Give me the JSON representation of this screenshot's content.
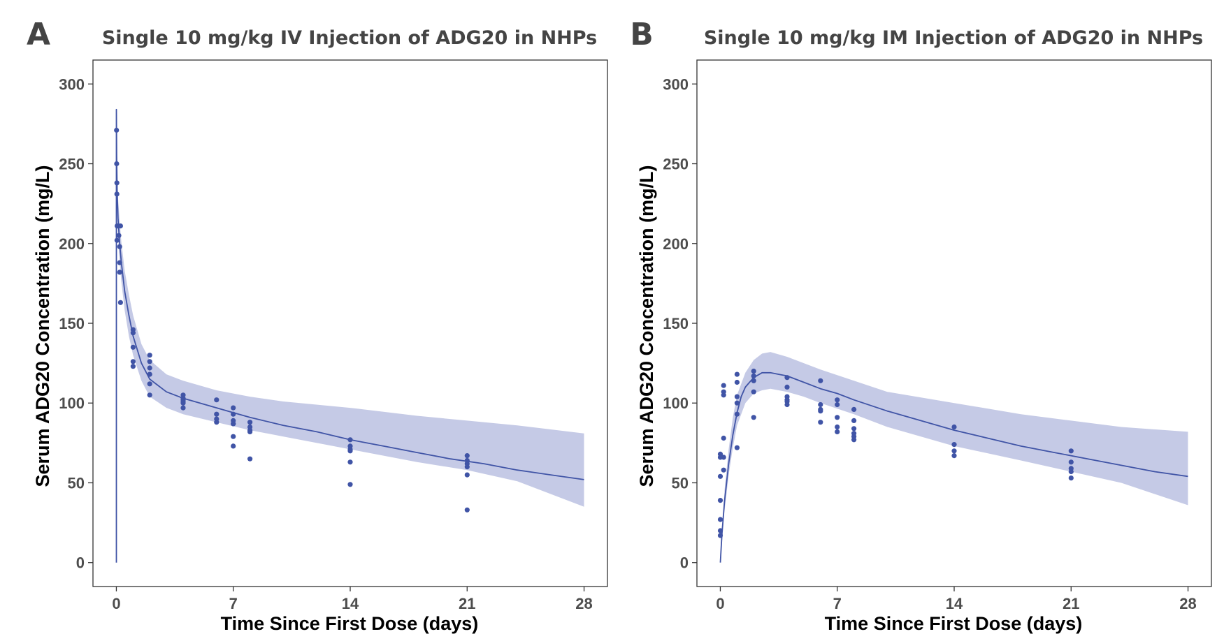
{
  "colors": {
    "series": "#4054a6",
    "band": "#c5cae6",
    "text": "#444444"
  },
  "chart_data": [
    {
      "type": "scatter",
      "panel_letter": "A",
      "title": "Single 10 mg/kg IV Injection of ADG20 in NHPs",
      "xlabel": "Time Since First Dose (days)",
      "ylabel": "Serum ADG20 Concentration (mg/L)",
      "xlim": [
        -1.4,
        29.4
      ],
      "ylim": [
        -15,
        315
      ],
      "xticks": [
        0,
        7,
        14,
        21,
        28
      ],
      "yticks": [
        0,
        50,
        100,
        150,
        200,
        250,
        300
      ],
      "grid": false,
      "series": [
        {
          "kind": "points",
          "x": [
            0.01,
            0.02,
            0.03,
            0.03,
            0.04,
            0.05,
            0.1,
            0.15,
            0.2,
            0.2,
            0.2,
            0.25,
            0.25,
            1,
            1,
            1,
            1,
            1,
            2,
            2,
            2,
            2,
            2,
            2,
            4,
            4,
            4,
            4,
            4,
            4,
            6,
            6,
            6,
            6,
            7,
            7,
            7,
            7,
            7,
            7,
            7,
            8,
            8,
            8,
            8,
            8,
            14,
            14,
            14,
            14,
            14,
            14,
            21,
            21,
            21,
            21,
            21,
            21
          ],
          "y": [
            271,
            250,
            238,
            231,
            202,
            211,
            211,
            205,
            198,
            188,
            182,
            163,
            211,
            146,
            144,
            135,
            126,
            123,
            130,
            126,
            122,
            118,
            112,
            105,
            105,
            103,
            102,
            101,
            100,
            97,
            102,
            93,
            90,
            88,
            97,
            93,
            89,
            87,
            79,
            73,
            87,
            88,
            85,
            83,
            65,
            82,
            77,
            73,
            71,
            70,
            63,
            49,
            67,
            64,
            62,
            60,
            55,
            33
          ]
        },
        {
          "kind": "line",
          "x": [
            0,
            0,
            0.01,
            0.02,
            0.05,
            0.1,
            0.2,
            0.3,
            0.5,
            0.75,
            1,
            1.5,
            2,
            3,
            4,
            5,
            6,
            7,
            8,
            10,
            12,
            14,
            16,
            18,
            20,
            22,
            24,
            26,
            28
          ],
          "y": [
            0,
            284,
            270,
            255,
            232,
            216,
            200,
            188,
            170,
            155,
            142,
            125,
            115,
            107,
            103,
            100,
            97,
            94,
            91,
            86,
            82,
            77,
            73,
            69,
            65,
            62,
            58,
            55,
            52
          ]
        },
        {
          "kind": "band",
          "x": [
            0.01,
            0.05,
            0.1,
            0.2,
            0.3,
            0.5,
            0.75,
            1,
            1.5,
            2,
            3,
            4,
            6,
            8,
            10,
            14,
            18,
            21,
            24,
            28
          ],
          "lower": [
            250,
            222,
            205,
            188,
            176,
            158,
            142,
            130,
            114,
            104,
            97,
            93,
            88,
            83,
            79,
            71,
            63,
            58,
            51,
            35
          ],
          "upper": [
            275,
            245,
            229,
            214,
            201,
            183,
            168,
            155,
            137,
            127,
            118,
            114,
            108,
            104,
            101,
            97,
            92,
            89,
            86,
            81
          ]
        }
      ]
    },
    {
      "type": "scatter",
      "panel_letter": "B",
      "title": "Single 10 mg/kg IM Injection of ADG20 in NHPs",
      "xlabel": "Time Since First Dose (days)",
      "ylabel": "Serum ADG20 Concentration (mg/L)",
      "xlim": [
        -1.4,
        29.4
      ],
      "ylim": [
        -15,
        315
      ],
      "xticks": [
        0,
        7,
        14,
        21,
        28
      ],
      "yticks": [
        0,
        50,
        100,
        150,
        200,
        250,
        300
      ],
      "grid": false,
      "series": [
        {
          "kind": "points",
          "x": [
            0,
            0,
            0,
            0,
            0,
            0,
            0,
            0.2,
            0.2,
            0.2,
            0.2,
            0.2,
            0.2,
            1,
            1,
            1,
            1,
            1,
            1,
            2,
            2,
            2,
            2,
            2,
            4,
            4,
            4,
            4,
            4,
            4,
            6,
            6,
            6,
            6,
            6,
            7,
            7,
            7,
            7,
            7,
            8,
            8,
            8,
            8,
            8,
            8,
            14,
            14,
            14,
            14,
            21,
            21,
            21,
            21,
            21
          ],
          "y": [
            17,
            20,
            27,
            39,
            54,
            68,
            66,
            58,
            66,
            78,
            105,
            107,
            111,
            118,
            113,
            104,
            100,
            93,
            72,
            120,
            117,
            114,
            107,
            91,
            116,
            110,
            104,
            102,
            101,
            99,
            114,
            99,
            96,
            95,
            88,
            102,
            99,
            91,
            85,
            82,
            96,
            89,
            84,
            81,
            79,
            77,
            85,
            74,
            70,
            67,
            70,
            63,
            59,
            57,
            53
          ]
        },
        {
          "kind": "line",
          "x": [
            0,
            0.1,
            0.25,
            0.5,
            0.75,
            1,
            1.25,
            1.5,
            2,
            2.5,
            3,
            3.5,
            4,
            5,
            6,
            7,
            8,
            10,
            12,
            14,
            16,
            18,
            20,
            22,
            24,
            26,
            28
          ],
          "y": [
            0,
            18,
            38,
            62,
            80,
            94,
            104,
            110,
            116,
            119,
            119,
            118,
            117,
            113,
            109,
            106,
            102,
            95,
            89,
            83,
            78,
            73,
            69,
            65,
            61,
            57,
            54
          ]
        },
        {
          "kind": "band",
          "x": [
            0,
            0.25,
            0.5,
            0.75,
            1,
            1.5,
            2,
            2.5,
            3,
            4,
            5,
            6,
            8,
            10,
            14,
            18,
            21,
            24,
            28
          ],
          "lower": [
            0,
            32,
            55,
            72,
            86,
            100,
            106,
            108,
            109,
            107,
            104,
            100,
            93,
            85,
            73,
            64,
            57,
            50,
            36
          ],
          "upper": [
            0,
            45,
            71,
            91,
            105,
            119,
            127,
            131,
            132,
            129,
            125,
            121,
            114,
            107,
            100,
            93,
            89,
            85,
            82
          ]
        }
      ]
    }
  ]
}
